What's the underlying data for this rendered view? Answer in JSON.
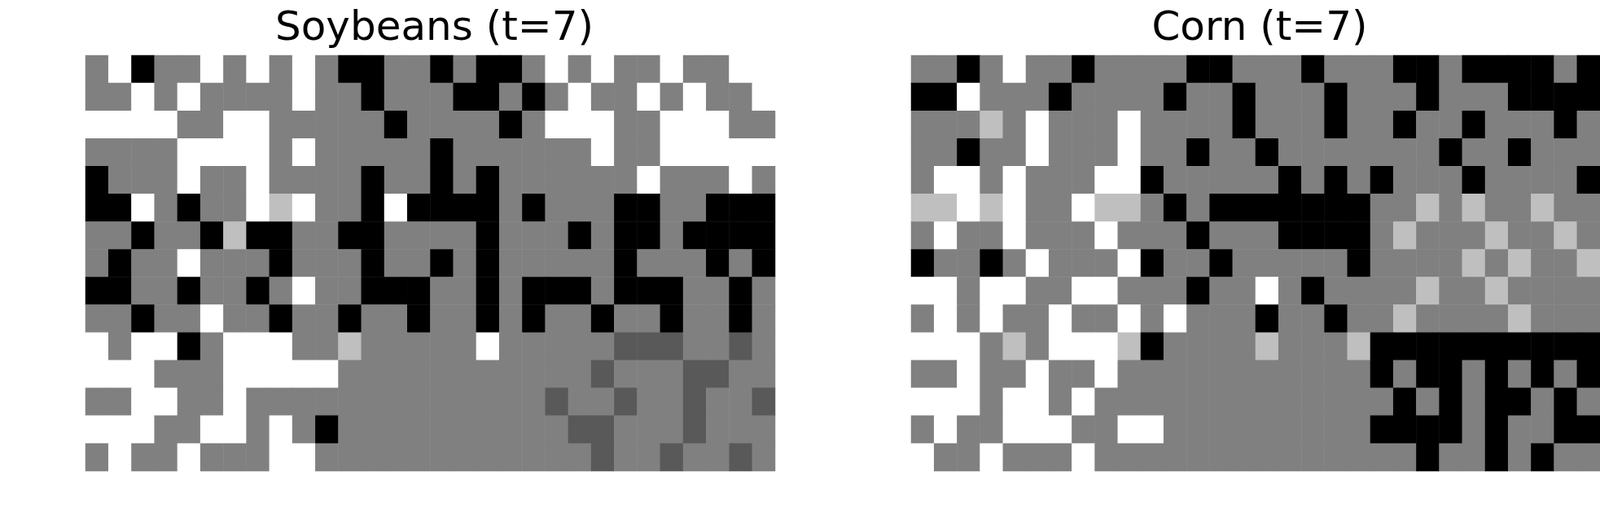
{
  "chart_data": [
    {
      "type": "heatmap",
      "title": "Soybeans (t=7)",
      "tick_labels": false,
      "color_range": [
        -1,
        1
      ],
      "cells": [
        [
          0,
          1,
          -1,
          0,
          0,
          1,
          0,
          1,
          0,
          1,
          0,
          -1,
          -1,
          0,
          0,
          -1,
          0,
          -1,
          -1,
          0,
          1,
          0,
          1,
          0,
          0,
          1,
          0,
          0,
          1,
          1
        ],
        [
          0,
          0,
          1,
          0,
          1,
          0,
          0,
          0,
          0,
          1,
          0,
          0,
          -1,
          0,
          0,
          0,
          -1,
          -1,
          0,
          -1,
          0,
          1,
          0,
          0,
          1,
          0,
          1,
          0,
          0,
          1
        ],
        [
          1,
          1,
          1,
          1,
          0,
          0,
          1,
          1,
          0,
          0,
          0,
          0,
          0,
          -1,
          0,
          0,
          0,
          0,
          -1,
          0,
          1,
          1,
          1,
          0,
          0,
          1,
          1,
          1,
          0,
          0
        ],
        [
          0,
          0,
          0,
          0,
          1,
          1,
          1,
          1,
          0,
          1,
          0,
          0,
          0,
          0,
          0,
          -1,
          0,
          0,
          0,
          0,
          0,
          0,
          1,
          0,
          0,
          1,
          1,
          1,
          1,
          1
        ],
        [
          -1,
          0,
          0,
          0,
          1,
          0,
          0,
          1,
          0,
          0,
          0,
          0,
          -1,
          0,
          0,
          -1,
          0,
          -1,
          0,
          0,
          0,
          0,
          0,
          0,
          1,
          0,
          0,
          0,
          1,
          0
        ],
        [
          -1,
          -1,
          1,
          0,
          -1,
          0,
          0,
          1,
          0.5,
          1,
          0,
          0,
          -1,
          1,
          -1,
          -1,
          -1,
          -1,
          0,
          -1,
          0,
          0,
          0,
          -1,
          -1,
          0,
          0,
          -1,
          -1,
          -1
        ],
        [
          0,
          0,
          -1,
          0,
          0,
          -1,
          0.5,
          -1,
          -1,
          0,
          0,
          -1,
          -1,
          0,
          0,
          0,
          0,
          -1,
          0,
          0,
          0,
          -1,
          0,
          -1,
          -1,
          0,
          -1,
          -1,
          -1,
          -1
        ],
        [
          0,
          -1,
          0,
          0,
          1,
          0,
          0,
          0,
          -1,
          0,
          0,
          0,
          -1,
          0,
          0,
          -1,
          0,
          -1,
          0,
          0,
          0,
          0,
          0,
          -1,
          0,
          0,
          0,
          -1,
          0,
          -1
        ],
        [
          -1,
          -1,
          0,
          0,
          -1,
          0,
          0,
          -1,
          0,
          1,
          0,
          0,
          -1,
          -1,
          -1,
          0,
          0,
          -1,
          0,
          -1,
          -1,
          -1,
          0,
          -1,
          -1,
          -1,
          0,
          0,
          -1,
          0
        ],
        [
          0,
          0,
          -1,
          0,
          0,
          1,
          0,
          0,
          -1,
          0,
          0,
          -1,
          0,
          0,
          -1,
          0,
          0,
          -1,
          0,
          -1,
          0,
          0,
          -1,
          0,
          0,
          -1,
          0,
          0,
          -1,
          0
        ],
        [
          1,
          0,
          1,
          1,
          -1,
          0,
          1,
          1,
          1,
          0,
          0,
          0.5,
          0,
          0,
          0,
          0,
          0,
          1,
          0,
          0,
          0,
          0,
          0,
          -0.3,
          -0.3,
          -0.3,
          0,
          0,
          -0.3,
          0
        ],
        [
          1,
          1,
          1,
          0,
          0,
          0,
          1,
          1,
          1,
          1,
          1,
          0,
          0,
          0,
          0,
          0,
          0,
          0,
          0,
          0,
          0,
          0,
          -0.3,
          0,
          0,
          0,
          -0.3,
          -0.3,
          0,
          0
        ],
        [
          0,
          0,
          1,
          1,
          0,
          0,
          1,
          0,
          0,
          0,
          0,
          0,
          0,
          0,
          0,
          0,
          0,
          0,
          0,
          0,
          -0.3,
          0,
          0,
          -0.3,
          0,
          0,
          -0.3,
          0,
          0,
          -0.3
        ],
        [
          1,
          1,
          1,
          0,
          0,
          1,
          1,
          0,
          1,
          0,
          -1,
          0,
          0,
          0,
          0,
          0,
          0,
          0,
          0,
          0,
          0,
          -0.3,
          -0.3,
          0,
          0,
          0,
          -0.3,
          0,
          0,
          0
        ],
        [
          0,
          1,
          0,
          0,
          1,
          0,
          0,
          0,
          1,
          1,
          0,
          0,
          0,
          0,
          0,
          0,
          0,
          0,
          0,
          0,
          0,
          0,
          -0.3,
          0,
          0,
          -0.3,
          0,
          0,
          -0.3,
          0
        ]
      ]
    },
    {
      "type": "heatmap",
      "title": "Corn (t=7)",
      "tick_labels": false,
      "color_range": [
        -1,
        1
      ],
      "cells": [
        [
          0,
          0,
          -1,
          0,
          1,
          0,
          0,
          -1,
          0,
          0,
          0,
          0,
          -1,
          -1,
          0,
          0,
          0,
          -1,
          0,
          0,
          0,
          -1,
          -1,
          0,
          -1,
          -1,
          -1,
          -1,
          0,
          -1
        ],
        [
          -1,
          -1,
          1,
          0,
          0,
          0,
          -1,
          0,
          0,
          0,
          0,
          -1,
          0,
          0,
          -1,
          0,
          0,
          0,
          -1,
          0,
          0,
          0,
          -1,
          0,
          0,
          0,
          -1,
          -1,
          -1,
          -1
        ],
        [
          0,
          0,
          0,
          0.5,
          0,
          1,
          0,
          0,
          0,
          1,
          0,
          0,
          0,
          0,
          -1,
          0,
          0,
          0,
          -1,
          0,
          0,
          -1,
          0,
          0,
          -1,
          0,
          0,
          0,
          -1,
          0
        ],
        [
          0,
          0,
          -1,
          0,
          0,
          1,
          0,
          0,
          0,
          1,
          0,
          0,
          -1,
          0,
          0,
          -1,
          0,
          0,
          0,
          0,
          0,
          0,
          0,
          -1,
          0,
          0,
          -1,
          0,
          0,
          0
        ],
        [
          0,
          1,
          1,
          0,
          1,
          0,
          0,
          0,
          1,
          1,
          -1,
          0,
          0,
          0,
          0,
          0,
          -1,
          0,
          -1,
          0,
          -1,
          0,
          0,
          0,
          -1,
          0,
          0,
          0,
          0,
          -1
        ],
        [
          0.5,
          0.5,
          1,
          0.5,
          1,
          0,
          0,
          1,
          0.5,
          0.5,
          0,
          -1,
          0,
          -1,
          -1,
          -1,
          -1,
          -1,
          -1,
          -1,
          0,
          0,
          0.5,
          0,
          0.5,
          0,
          0,
          0.5,
          0,
          0
        ],
        [
          0,
          1,
          0,
          0,
          1,
          0,
          0,
          0,
          1,
          0,
          0,
          0,
          -1,
          0,
          0,
          0,
          -1,
          -1,
          -1,
          -1,
          0,
          0.5,
          0,
          0,
          0,
          0.5,
          0,
          0,
          0.5,
          0
        ],
        [
          -1,
          0,
          0,
          -1,
          0,
          1,
          0,
          0,
          0,
          1,
          -1,
          0,
          0,
          -1,
          0,
          0,
          0,
          0,
          0,
          -1,
          0,
          0,
          0,
          0,
          0.5,
          0,
          0.5,
          0,
          0,
          0.5
        ],
        [
          1,
          1,
          0,
          1,
          1,
          0,
          0,
          1,
          1,
          0,
          0,
          0,
          -1,
          0,
          0,
          1,
          0,
          -1,
          0,
          0,
          0,
          0,
          0.5,
          0,
          0,
          0.5,
          0,
          0,
          0,
          0
        ],
        [
          0,
          1,
          0,
          1,
          0,
          0,
          1,
          0,
          0,
          1,
          0,
          1,
          0,
          0,
          0,
          -1,
          0,
          0,
          -1,
          0,
          0,
          0.5,
          0,
          0,
          0,
          0,
          0.5,
          0,
          0,
          0
        ],
        [
          1,
          1,
          1,
          0,
          0.5,
          0,
          1,
          1,
          1,
          0.5,
          -1,
          0,
          0,
          0,
          0,
          0.5,
          0,
          0,
          0,
          0.5,
          -1,
          -1,
          -1,
          -1,
          -1,
          -1,
          -1,
          -1,
          -1,
          -1
        ],
        [
          0,
          0,
          1,
          0,
          0,
          1,
          0,
          0,
          1,
          0,
          0,
          0,
          0,
          0,
          0,
          0,
          0,
          0,
          0,
          0,
          -1,
          0,
          -1,
          -1,
          0,
          -1,
          0,
          -1,
          0,
          -1
        ],
        [
          1,
          1,
          1,
          0,
          1,
          1,
          0,
          1,
          0,
          0,
          0,
          0,
          0,
          0,
          0,
          0,
          0,
          0,
          0,
          0,
          0,
          -1,
          0,
          -1,
          0,
          -1,
          -1,
          0,
          -1,
          0
        ],
        [
          0,
          1,
          0,
          0,
          1,
          1,
          1,
          0,
          0,
          1,
          1,
          0,
          0,
          0,
          0,
          0,
          0,
          0,
          0,
          0,
          -1,
          -1,
          -1,
          -1,
          0,
          -1,
          0,
          0,
          -1,
          -1
        ],
        [
          1,
          0,
          0,
          1,
          0,
          0,
          0,
          1,
          0,
          0,
          0,
          0,
          0,
          0,
          0,
          0,
          0,
          0,
          0,
          0,
          0,
          0,
          -1,
          0,
          0,
          -1,
          0,
          -1,
          0,
          0
        ]
      ]
    }
  ]
}
